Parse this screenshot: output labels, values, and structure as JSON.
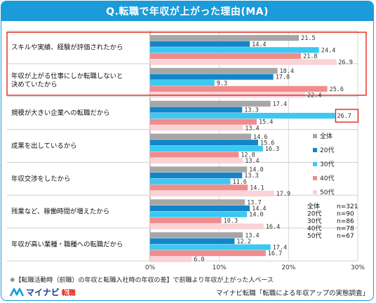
{
  "header": {
    "title": "Q.転職で年収が上がった理由(MA)"
  },
  "chart_data": {
    "type": "bar",
    "orientation": "horizontal",
    "title": "Q.転職で年収が上がった理由(MA)",
    "categories": [
      [
        "スキルや実績、経験が評価されたから"
      ],
      [
        "年収が上がる仕事にしか転職しないと",
        "決めていたから"
      ],
      [
        "規模が大きい企業への転職だから"
      ],
      [
        "成果を出しているから"
      ],
      [
        "年収交渉をしたから"
      ],
      [
        "残業など、稼働時間が増えたから"
      ],
      [
        "年収が高い業種・職種への転職だから"
      ]
    ],
    "series": [
      {
        "name": "全体",
        "color": "#a6a6a6",
        "values": [
          21.5,
          18.4,
          17.4,
          14.6,
          14.0,
          13.7,
          13.4
        ]
      },
      {
        "name": "20代",
        "color": "#1386c9",
        "values": [
          14.4,
          17.8,
          13.3,
          15.6,
          13.3,
          14.4,
          12.2
        ]
      },
      {
        "name": "30代",
        "color": "#3cc8f0",
        "values": [
          24.4,
          9.3,
          26.7,
          16.3,
          11.6,
          14.0,
          17.4
        ]
      },
      {
        "name": "40代",
        "color": "#f08c8c",
        "values": [
          21.8,
          25.6,
          15.4,
          12.8,
          14.1,
          10.3,
          16.7
        ]
      },
      {
        "name": "50代",
        "color": "#f9d3d6",
        "values": [
          26.9,
          22.4,
          13.4,
          13.4,
          17.9,
          16.4,
          6.0
        ]
      }
    ],
    "xlim": [
      0,
      30
    ],
    "ticks": [
      "0%",
      "10%",
      "20%",
      "30%"
    ],
    "tick_values": [
      0,
      10,
      20,
      30
    ],
    "legend_position": "right",
    "highlight_color": "#e0261b",
    "sample_sizes": [
      {
        "label": "全体",
        "n": "n=321"
      },
      {
        "label": "20代",
        "n": "n=90"
      },
      {
        "label": "30代",
        "n": "n=86"
      },
      {
        "label": "40代",
        "n": "n=78"
      },
      {
        "label": "50代",
        "n": "n=67"
      }
    ]
  },
  "note": "※【転職活動時（前職）の年収と転職入社時の年収の差】で前職より年収が上がった人ベース",
  "footer": {
    "brand": "マイナビ",
    "brand_sub": "転職",
    "source": "マイナビ転職「転職による年収アップの実態調査」"
  }
}
